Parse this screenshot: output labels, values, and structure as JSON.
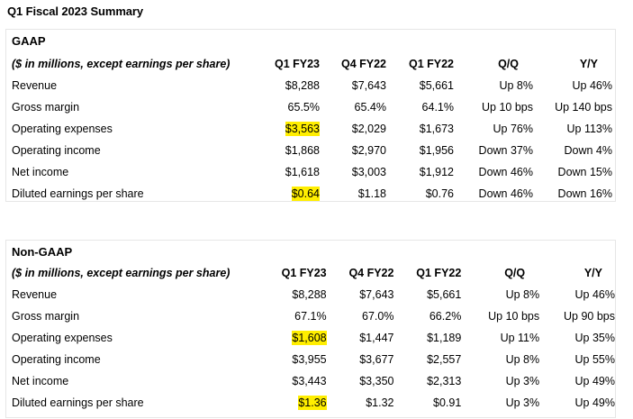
{
  "title": "Q1 Fiscal 2023 Summary",
  "gaap": {
    "section_title": "GAAP",
    "header": [
      "($ in millions, except earnings per share)",
      "Q1 FY23",
      "Q4 FY22",
      "Q1 FY22",
      "Q/Q",
      "Y/Y"
    ],
    "rows": [
      {
        "label": "Revenue",
        "q1fy23": "$8,288",
        "q4fy22": "$7,643",
        "q1fy22": "$5,661",
        "qq": "Up 8%",
        "yy": "Up 46%"
      },
      {
        "label": "Gross margin",
        "q1fy23": "65.5%",
        "q4fy22": "65.4%",
        "q1fy22": "64.1%",
        "qq": "Up 10 bps",
        "yy": "Up 140 bps"
      },
      {
        "label": "Operating expenses",
        "q1fy23": "$3,563",
        "q4fy22": "$2,029",
        "q1fy22": "$1,673",
        "qq": "Up 76%",
        "yy": "Up 113%"
      },
      {
        "label": "Operating income",
        "q1fy23": "$1,868",
        "q4fy22": "$2,970",
        "q1fy22": "$1,956",
        "qq": "Down 37%",
        "yy": "Down 4%"
      },
      {
        "label": "Net income",
        "q1fy23": "$1,618",
        "q4fy22": "$3,003",
        "q1fy22": "$1,912",
        "qq": "Down 46%",
        "yy": "Down 15%"
      },
      {
        "label": "Diluted earnings per share",
        "q1fy23": "$0.64",
        "q4fy22": "$1.18",
        "q1fy22": "$0.76",
        "qq": "Down 46%",
        "yy": "Down 16%"
      }
    ]
  },
  "nongaap": {
    "section_title": "Non-GAAP",
    "header": [
      "($ in millions, except earnings per share)",
      "Q1 FY23",
      "Q4 FY22",
      "Q1 FY22",
      "Q/Q",
      "Y/Y"
    ],
    "rows": [
      {
        "label": "Revenue",
        "q1fy23": "$8,288",
        "q4fy22": "$7,643",
        "q1fy22": "$5,661",
        "qq": "Up 8%",
        "yy": "Up 46%"
      },
      {
        "label": "Gross margin",
        "q1fy23": "67.1%",
        "q4fy22": "67.0%",
        "q1fy22": "66.2%",
        "qq": "Up 10 bps",
        "yy": "Up 90 bps"
      },
      {
        "label": "Operating expenses",
        "q1fy23": "$1,608",
        "q4fy22": "$1,447",
        "q1fy22": "$1,189",
        "qq": "Up 11%",
        "yy": "Up 35%"
      },
      {
        "label": "Operating income",
        "q1fy23": "$3,955",
        "q4fy22": "$3,677",
        "q1fy22": "$2,557",
        "qq": "Up 8%",
        "yy": "Up 55%"
      },
      {
        "label": "Net income",
        "q1fy23": "$3,443",
        "q4fy22": "$3,350",
        "q1fy22": "$2,313",
        "qq": "Up 3%",
        "yy": "Up 49%"
      },
      {
        "label": "Diluted earnings per share",
        "q1fy23": "$1.36",
        "q4fy22": "$1.32",
        "q1fy22": "$0.91",
        "qq": "Up 3%",
        "yy": "Up 49%"
      }
    ]
  },
  "highlight_color": "#ffee00"
}
